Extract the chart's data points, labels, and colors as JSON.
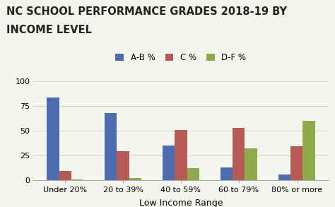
{
  "title_line1": "NC SCHOOL PERFORMANCE GRADES 2018-19 BY",
  "title_line2": "INCOME LEVEL",
  "categories": [
    "Under 20%",
    "20 to 39%",
    "40 to 59%",
    "60 to 79%",
    "80% or more"
  ],
  "series": [
    {
      "label": "A-B %",
      "color": "#4f6baf",
      "values": [
        84,
        68,
        35,
        13,
        6
      ]
    },
    {
      "label": "C %",
      "color": "#b55a55",
      "values": [
        9,
        29,
        51,
        53,
        34
      ]
    },
    {
      "label": "D-F %",
      "color": "#8faa4b",
      "values": [
        1,
        2,
        12,
        32,
        60
      ]
    }
  ],
  "xlabel": "Low Income Range",
  "ylim": [
    0,
    105
  ],
  "yticks": [
    0,
    25,
    50,
    75,
    100
  ],
  "background_color": "#f5f5f0",
  "title_fontsize": 10.5,
  "legend_fontsize": 8.5,
  "axis_label_fontsize": 9,
  "tick_fontsize": 8,
  "bar_width": 0.21
}
